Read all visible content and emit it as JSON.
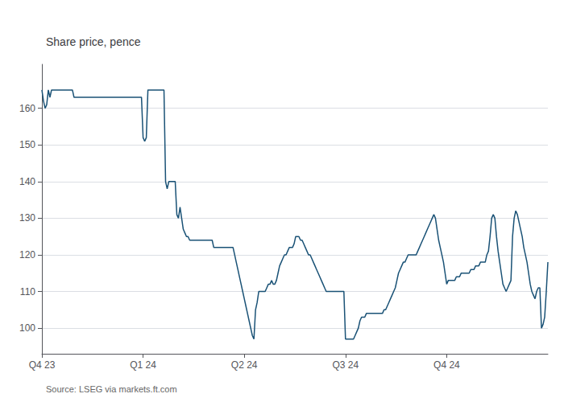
{
  "chart_data": {
    "type": "line",
    "title": "Share price, pence",
    "annotations": [
      "Source: LSEG via markets.ft.com"
    ],
    "color": "#1a5276",
    "grid": true,
    "ylim": [
      93,
      172
    ],
    "yticks": [
      100,
      110,
      120,
      130,
      140,
      150,
      160
    ],
    "categories": [
      "Q4 23",
      null,
      null,
      null,
      null,
      null,
      null,
      null,
      null,
      null,
      null,
      null,
      null,
      null,
      null,
      null,
      null,
      null,
      null,
      null,
      null,
      null,
      null,
      null,
      null,
      null,
      null,
      null,
      null,
      null,
      null,
      null,
      null,
      null,
      null,
      null,
      null,
      null,
      null,
      null,
      null,
      null,
      null,
      null,
      null,
      null,
      null,
      null,
      null,
      null,
      null,
      null,
      null,
      null,
      null,
      null,
      null,
      null,
      null,
      null,
      null,
      null,
      null,
      "Q1 24",
      null,
      null,
      null,
      null,
      null,
      null,
      null,
      null,
      null,
      null,
      null,
      null,
      null,
      null,
      null,
      null,
      null,
      null,
      null,
      null,
      null,
      null,
      null,
      null,
      null,
      null,
      null,
      null,
      null,
      null,
      null,
      null,
      null,
      null,
      null,
      null,
      null,
      null,
      null,
      null,
      null,
      null,
      null,
      null,
      null,
      null,
      null,
      null,
      null,
      null,
      null,
      null,
      null,
      null,
      null,
      null,
      null,
      null,
      null,
      null,
      null,
      null,
      "Q2 24",
      null,
      null,
      null,
      null,
      null,
      null,
      null,
      null,
      null,
      null,
      null,
      null,
      null,
      null,
      null,
      null,
      null,
      null,
      null,
      null,
      null,
      null,
      null,
      null,
      null,
      null,
      null,
      null,
      null,
      null,
      null,
      null,
      null,
      null,
      null,
      null,
      null,
      null,
      null,
      null,
      null,
      null,
      null,
      null,
      null,
      null,
      null,
      null,
      null,
      null,
      null,
      null,
      null,
      null,
      null,
      null,
      null,
      null,
      null,
      null,
      null,
      null,
      "Q3 24",
      null,
      null,
      null,
      null,
      null,
      null,
      null,
      null,
      null,
      null,
      null,
      null,
      null,
      null,
      null,
      null,
      null,
      null,
      null,
      null,
      null,
      null,
      null,
      null,
      null,
      null,
      null,
      null,
      null,
      null,
      null,
      null,
      null,
      null,
      null,
      null,
      null,
      null,
      null,
      null,
      null,
      null,
      null,
      null,
      null,
      null,
      null,
      null,
      null,
      null,
      null,
      null,
      null,
      null,
      null,
      null,
      null,
      null,
      null,
      null,
      null,
      null,
      "Q4 24",
      null,
      null,
      null,
      null,
      null,
      null,
      null,
      null,
      null,
      null,
      null,
      null,
      null,
      null,
      null,
      null,
      null,
      null,
      null,
      null,
      null,
      null,
      null,
      null,
      null,
      null,
      null,
      null,
      null,
      null,
      null,
      null,
      null,
      null,
      null,
      null,
      null,
      null,
      null,
      null,
      null,
      null,
      null,
      null,
      null,
      null,
      null,
      null,
      null,
      null,
      null,
      null,
      null,
      null,
      null,
      null,
      null,
      null,
      null,
      null,
      null,
      null,
      null
    ],
    "values": [
      165,
      162,
      160,
      161,
      165,
      163,
      165,
      165,
      165,
      165,
      165,
      165,
      165,
      165,
      165,
      165,
      165,
      165,
      165,
      165,
      163,
      163,
      163,
      163,
      163,
      163,
      163,
      163,
      163,
      163,
      163,
      163,
      163,
      163,
      163,
      163,
      163,
      163,
      163,
      163,
      163,
      163,
      163,
      163,
      163,
      163,
      163,
      163,
      163,
      163,
      163,
      163,
      163,
      163,
      163,
      163,
      163,
      163,
      163,
      163,
      163,
      163,
      163,
      152,
      151,
      152,
      165,
      165,
      165,
      165,
      165,
      165,
      165,
      165,
      165,
      165,
      165,
      140,
      138,
      140,
      140,
      140,
      140,
      140,
      131,
      130,
      133,
      130,
      127,
      126,
      125,
      125,
      124,
      124,
      124,
      124,
      124,
      124,
      124,
      124,
      124,
      124,
      124,
      124,
      124,
      124,
      124,
      122,
      122,
      122,
      122,
      122,
      122,
      122,
      122,
      122,
      122,
      122,
      122,
      122,
      120,
      118,
      116,
      114,
      112,
      110,
      108,
      106,
      104,
      102,
      100,
      98,
      97,
      105,
      107,
      110,
      110,
      110,
      110,
      110,
      111,
      112,
      112,
      113,
      112,
      112,
      113,
      115,
      117,
      118,
      119,
      120,
      120,
      121,
      122,
      122,
      122,
      123,
      125,
      125,
      125,
      124,
      124,
      123,
      122,
      121,
      120,
      120,
      119,
      118,
      117,
      116,
      115,
      114,
      113,
      112,
      111,
      110,
      110,
      110,
      110,
      110,
      110,
      110,
      110,
      110,
      110,
      110,
      110,
      97,
      97,
      97,
      97,
      97,
      97,
      98,
      99,
      100,
      102,
      103,
      103,
      103,
      104,
      104,
      104,
      104,
      104,
      104,
      104,
      104,
      104,
      104,
      104,
      105,
      105,
      106,
      107,
      108,
      109,
      110,
      111,
      113,
      115,
      116,
      117,
      118,
      118,
      119,
      120,
      120,
      120,
      120,
      120,
      120,
      121,
      122,
      123,
      124,
      125,
      126,
      127,
      128,
      129,
      130,
      131,
      130,
      127,
      124,
      122,
      120,
      118,
      115,
      112,
      113,
      113,
      113,
      113,
      113,
      114,
      114,
      114,
      115,
      115,
      115,
      115,
      115,
      115,
      116,
      116,
      116,
      117,
      117,
      117,
      118,
      118,
      118,
      118,
      120,
      121,
      125,
      130,
      131,
      130,
      125,
      121,
      118,
      115,
      112,
      111,
      110,
      111,
      112,
      113,
      125,
      130,
      132,
      131,
      129,
      127,
      125,
      122,
      120,
      118,
      115,
      112,
      110,
      109,
      108,
      110,
      111,
      111,
      100,
      101,
      103,
      110,
      118
    ]
  }
}
